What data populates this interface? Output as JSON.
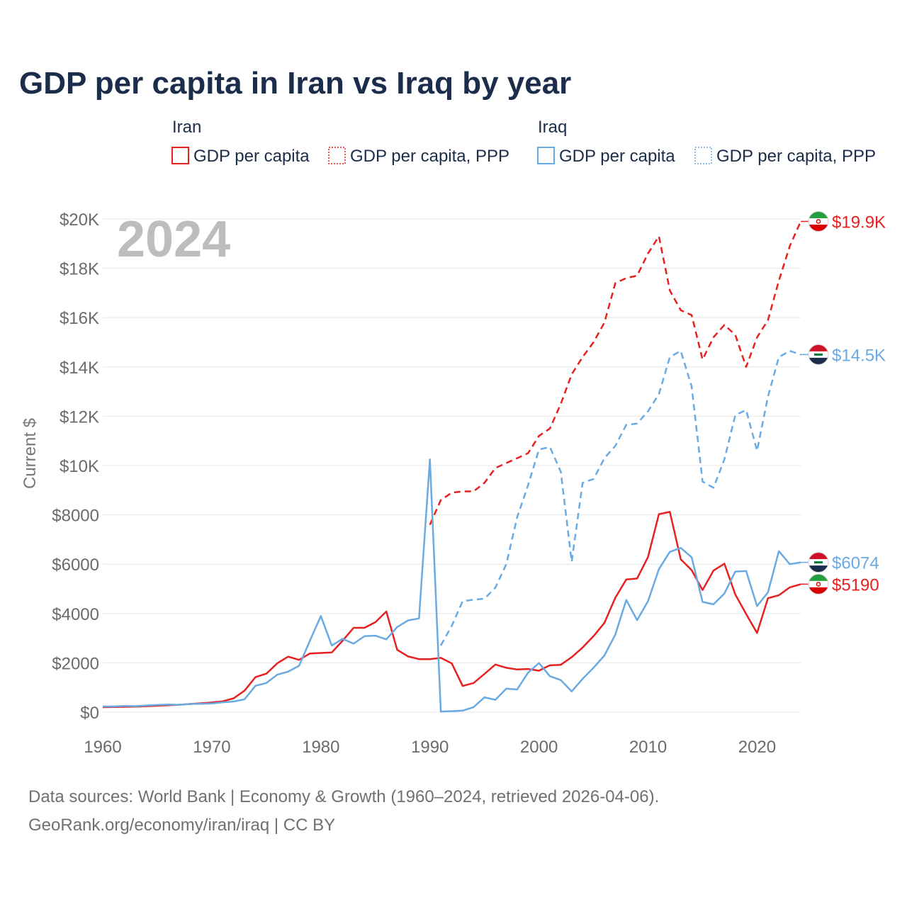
{
  "chart_data": {
    "type": "line",
    "title": "GDP per capita in Iran vs Iraq by year",
    "ylabel": "Current $",
    "xlabel": "",
    "xlim": [
      1960,
      2024
    ],
    "ylim": [
      0,
      20000
    ],
    "x_ticks": [
      1960,
      1970,
      1980,
      1990,
      2000,
      2010,
      2020
    ],
    "x_tick_labels": [
      "1960",
      "1970",
      "1980",
      "1990",
      "2000",
      "2010",
      "2020"
    ],
    "y_ticks": [
      0,
      2000,
      4000,
      6000,
      8000,
      10000,
      12000,
      14000,
      16000,
      18000,
      20000
    ],
    "y_tick_labels": [
      "$0",
      "$2000",
      "$4000",
      "$6000",
      "$8000",
      "$10K",
      "$12K",
      "$14K",
      "$16K",
      "$18K",
      "$20K"
    ],
    "grid": true,
    "year_watermark": "2024",
    "legend": {
      "placement": "top",
      "groups": [
        {
          "country": "Iran",
          "items": [
            "GDP per capita",
            "GDP per capita, PPP"
          ]
        },
        {
          "country": "Iraq",
          "items": [
            "GDP per capita",
            "GDP per capita, PPP"
          ]
        }
      ]
    },
    "series": [
      {
        "name": "Iran GDP per capita",
        "country": "Iran",
        "style": "solid",
        "color": "#e8201f",
        "end_label": "$5190",
        "x": [
          1960,
          1961,
          1962,
          1963,
          1964,
          1965,
          1966,
          1967,
          1968,
          1969,
          1970,
          1971,
          1972,
          1973,
          1974,
          1975,
          1976,
          1977,
          1978,
          1979,
          1980,
          1981,
          1982,
          1983,
          1984,
          1985,
          1986,
          1987,
          1988,
          1989,
          1990,
          1991,
          1992,
          1993,
          1994,
          1995,
          1996,
          1997,
          1998,
          1999,
          2000,
          2001,
          2002,
          2003,
          2004,
          2005,
          2006,
          2007,
          2008,
          2009,
          2010,
          2011,
          2012,
          2013,
          2014,
          2015,
          2016,
          2017,
          2018,
          2019,
          2020,
          2021,
          2022,
          2023,
          2024
        ],
        "values": [
          200,
          210,
          215,
          220,
          240,
          260,
          280,
          300,
          330,
          360,
          390,
          440,
          560,
          870,
          1420,
          1560,
          1980,
          2250,
          2120,
          2380,
          2400,
          2420,
          2900,
          3420,
          3420,
          3650,
          4080,
          2530,
          2260,
          2150,
          2150,
          2200,
          1980,
          1060,
          1180,
          1550,
          1930,
          1800,
          1730,
          1750,
          1680,
          1900,
          1920,
          2230,
          2620,
          3080,
          3620,
          4640,
          5380,
          5420,
          6290,
          8030,
          8120,
          6200,
          5760,
          4950,
          5740,
          6020,
          4770,
          3980,
          3210,
          4620,
          4740,
          5060,
          5190
        ]
      },
      {
        "name": "Iran GDP per capita, PPP",
        "country": "Iran",
        "style": "dashed",
        "color": "#e8201f",
        "end_label": "$19.9K",
        "x": [
          1990,
          1991,
          1992,
          1993,
          1994,
          1995,
          1996,
          1997,
          1998,
          1999,
          2000,
          2001,
          2002,
          2003,
          2004,
          2005,
          2006,
          2007,
          2008,
          2009,
          2010,
          2011,
          2012,
          2013,
          2014,
          2015,
          2016,
          2017,
          2018,
          2019,
          2020,
          2021,
          2022,
          2023,
          2024
        ],
        "values": [
          7600,
          8600,
          8900,
          8950,
          8950,
          9300,
          9900,
          10100,
          10300,
          10500,
          11200,
          11500,
          12500,
          13700,
          14400,
          15000,
          15800,
          17400,
          17600,
          17700,
          18600,
          19300,
          17100,
          16300,
          16100,
          14300,
          15200,
          15700,
          15300,
          14000,
          15200,
          15900,
          17500,
          18900,
          19900
        ]
      },
      {
        "name": "Iraq GDP per capita",
        "country": "Iraq",
        "style": "solid",
        "color": "#6aaae2",
        "end_label": "$6074",
        "x": [
          1960,
          1961,
          1962,
          1963,
          1964,
          1965,
          1966,
          1967,
          1968,
          1969,
          1970,
          1971,
          1972,
          1973,
          1974,
          1975,
          1976,
          1977,
          1978,
          1979,
          1980,
          1981,
          1982,
          1983,
          1984,
          1985,
          1986,
          1987,
          1988,
          1989,
          1990,
          1991,
          1992,
          1993,
          1994,
          1995,
          1996,
          1997,
          1998,
          1999,
          2000,
          2001,
          2002,
          2003,
          2004,
          2005,
          2006,
          2007,
          2008,
          2009,
          2010,
          2011,
          2012,
          2013,
          2014,
          2015,
          2016,
          2017,
          2018,
          2019,
          2020,
          2021,
          2022,
          2023,
          2024
        ],
        "values": [
          230,
          230,
          250,
          240,
          270,
          290,
          310,
          300,
          330,
          340,
          350,
          400,
          430,
          520,
          1070,
          1180,
          1520,
          1640,
          1880,
          2900,
          3900,
          2700,
          2970,
          2780,
          3080,
          3100,
          2950,
          3450,
          3720,
          3800,
          10250,
          20,
          40,
          60,
          200,
          600,
          500,
          950,
          920,
          1600,
          1990,
          1460,
          1300,
          840,
          1350,
          1800,
          2300,
          3150,
          4550,
          3730,
          4500,
          5800,
          6500,
          6660,
          6280,
          4470,
          4370,
          4810,
          5700,
          5720,
          4300,
          4860,
          6530,
          6000,
          6074
        ]
      },
      {
        "name": "Iraq GDP per capita, PPP",
        "country": "Iraq",
        "style": "dashed",
        "color": "#6aaae2",
        "end_label": "$14.5K",
        "x": [
          1991,
          1992,
          1993,
          1994,
          1995,
          1996,
          1997,
          1998,
          1999,
          2000,
          2001,
          2002,
          2003,
          2004,
          2005,
          2006,
          2007,
          2008,
          2009,
          2010,
          2011,
          2012,
          2013,
          2014,
          2015,
          2016,
          2017,
          2018,
          2019,
          2020,
          2021,
          2022,
          2023,
          2024
        ],
        "values": [
          2700,
          3500,
          4500,
          4560,
          4600,
          5050,
          6000,
          7900,
          9200,
          10650,
          10750,
          9750,
          6100,
          9300,
          9450,
          10300,
          10800,
          11650,
          11700,
          12200,
          12900,
          14400,
          14650,
          13200,
          9350,
          9100,
          10250,
          12050,
          12250,
          10600,
          12800,
          14400,
          14650,
          14500
        ]
      }
    ],
    "source_line1": "Data sources: World Bank | Economy & Growth (1960–2024, retrieved 2026-04-06).",
    "source_line2": "GeoRank.org/economy/iran/iraq | CC BY"
  }
}
